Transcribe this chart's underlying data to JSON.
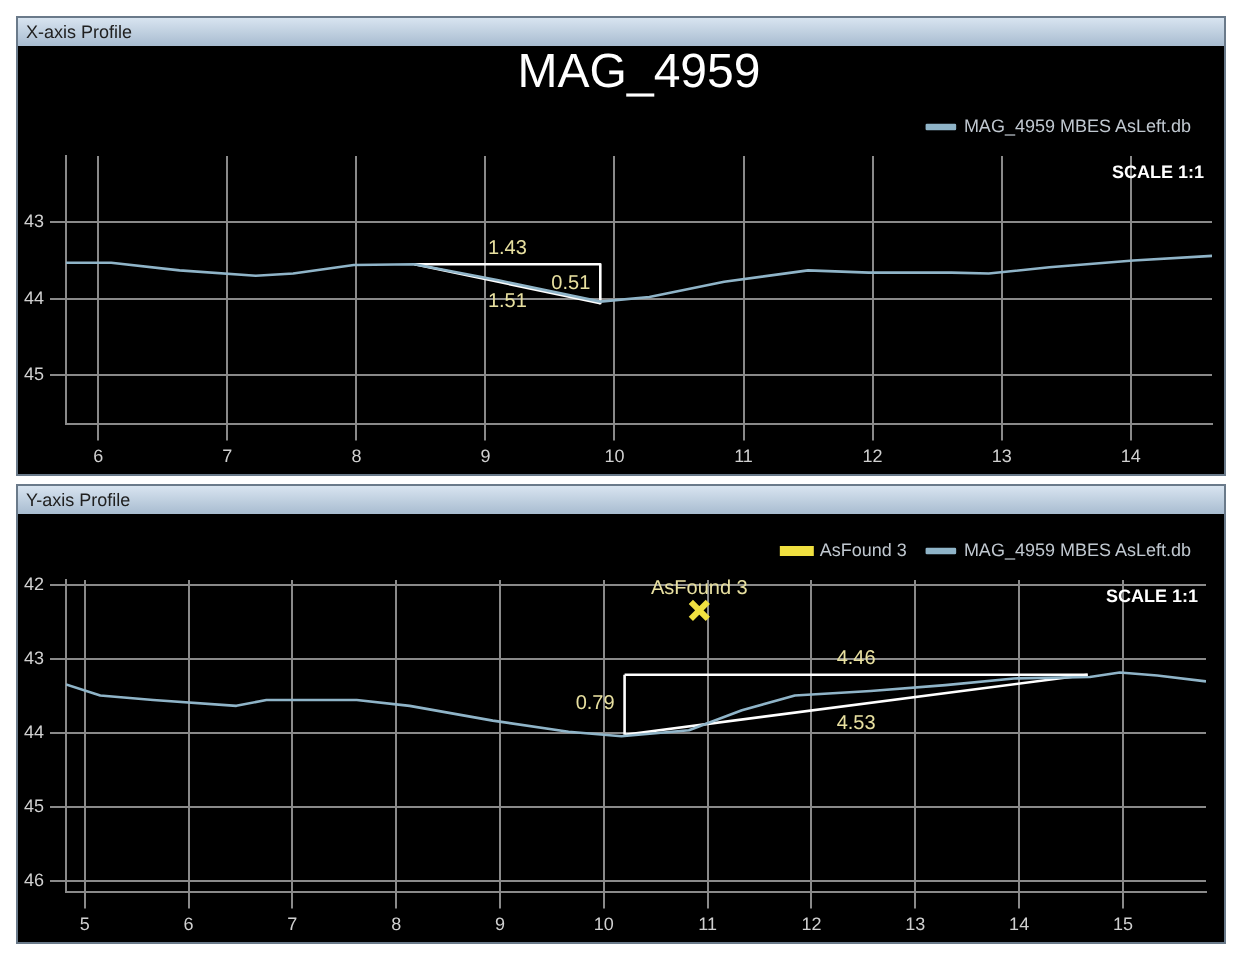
{
  "chart_data": [
    {
      "type": "line",
      "title": "X-axis Profile",
      "subtitle": "MAG_4959",
      "xlim": [
        5.75,
        14.63
      ],
      "xticks": [
        6,
        7,
        8,
        9,
        10,
        11,
        12,
        13,
        14
      ],
      "ylim": [
        45.65,
        42.13
      ],
      "yticks": [
        43,
        44,
        45
      ],
      "grid": true,
      "legend": "top right",
      "annotations": [
        "SCALE 1:1",
        {
          "text": "1.43",
          "x": 9.17,
          "y": 43.55
        },
        {
          "text": "0.51",
          "x": 9.89,
          "y": 43.8
        },
        {
          "text": "1.51",
          "x": 9.17,
          "y": 43.8
        }
      ],
      "series": [
        {
          "name": "MAG_4959 MBES AsLeft.db",
          "type": "line",
          "marker": "none",
          "color": "#8fb4c8",
          "x": [
            5.75,
            6.1,
            6.63,
            7.22,
            7.51,
            7.98,
            8.45,
            9.1,
            9.89,
            10.27,
            10.85,
            11.5,
            11.97,
            12.61,
            12.9,
            13.37,
            14.02,
            14.63
          ],
          "values": [
            43.53,
            43.53,
            43.63,
            43.7,
            43.67,
            43.56,
            43.55,
            43.76,
            44.04,
            43.98,
            43.78,
            43.63,
            43.66,
            43.66,
            43.67,
            43.59,
            43.5,
            43.44
          ]
        },
        {
          "type": "line",
          "marker": "none",
          "color": "#ffffff",
          "x": [
            8.45,
            9.89
          ],
          "values": [
            43.55,
            43.55
          ]
        },
        {
          "type": "line",
          "marker": "none",
          "color": "#ffffff",
          "x": [
            9.89,
            9.89
          ],
          "values": [
            43.55,
            44.06
          ]
        },
        {
          "type": "line",
          "marker": "none",
          "color": "#ffffff",
          "x": [
            8.45,
            9.89
          ],
          "values": [
            43.55,
            44.06
          ]
        }
      ]
    },
    {
      "type": "line",
      "title": "Y-axis Profile",
      "xlim": [
        4.82,
        15.8
      ],
      "xticks": [
        5,
        6,
        7,
        8,
        9,
        10,
        11,
        12,
        13,
        14,
        15
      ],
      "ylim": [
        46.15,
        41.93
      ],
      "yticks": [
        42,
        43,
        44,
        45,
        46
      ],
      "grid": true,
      "legend": "top right",
      "annotations": [
        "SCALE 1:1",
        {
          "text": "AsFound 3",
          "x": 10.92,
          "y": 42.34
        },
        {
          "text": "4.46",
          "x": 12.43,
          "y": 43.21
        },
        {
          "text": "0.79",
          "x": 10.2,
          "y": 43.6
        },
        {
          "text": "4.53",
          "x": 12.43,
          "y": 43.62
        }
      ],
      "series": [
        {
          "name": "AsFound 3",
          "type": "scatter",
          "marker": "cross",
          "color": "#f0e040",
          "x": [
            10.92
          ],
          "values": [
            42.34
          ]
        },
        {
          "name": "MAG_4959 MBES AsLeft.db",
          "type": "line",
          "marker": "none",
          "color": "#8fb4c8",
          "x": [
            4.82,
            5.15,
            5.66,
            6.46,
            6.75,
            7.62,
            8.13,
            8.93,
            9.66,
            10.17,
            10.82,
            11.33,
            11.84,
            12.57,
            13.29,
            13.95,
            14.68,
            14.97,
            15.33,
            15.8
          ],
          "values": [
            43.34,
            43.49,
            43.55,
            43.63,
            43.55,
            43.55,
            43.63,
            43.83,
            43.98,
            44.04,
            43.96,
            43.69,
            43.49,
            43.43,
            43.35,
            43.26,
            43.24,
            43.18,
            43.22,
            43.3
          ]
        },
        {
          "type": "line",
          "marker": "none",
          "color": "#ffffff",
          "x": [
            10.2,
            10.2
          ],
          "values": [
            44.02,
            43.21
          ]
        },
        {
          "type": "line",
          "marker": "none",
          "color": "#ffffff",
          "x": [
            10.2,
            14.66
          ],
          "values": [
            43.21,
            43.21
          ]
        },
        {
          "type": "line",
          "marker": "none",
          "color": "#ffffff",
          "x": [
            10.2,
            14.66
          ],
          "values": [
            44.02,
            43.21
          ]
        }
      ]
    }
  ]
}
